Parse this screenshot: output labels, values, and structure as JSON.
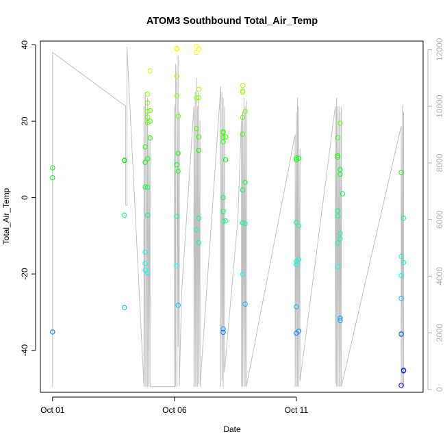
{
  "chart_data": {
    "type": "scatter",
    "title": "ATOM3 Southbound Total_Air_Temp",
    "xlabel": "Date",
    "ylabel": "Total_Air_Temp",
    "x_unit": "days since Oct 01",
    "xlim": [
      -0.5,
      15.2
    ],
    "ylim": [
      -51,
      41
    ],
    "y2lim": [
      -100,
      12300
    ],
    "x_ticks": [
      {
        "x": 0,
        "label": "Oct 01"
      },
      {
        "x": 5,
        "label": "Oct 06"
      },
      {
        "x": 10,
        "label": "Oct 11"
      }
    ],
    "y_ticks": [
      -40,
      -20,
      0,
      20,
      40
    ],
    "y2_ticks": [
      0,
      2000,
      4000,
      6000,
      8000,
      10000,
      12000
    ],
    "temp_range": [
      -50,
      40
    ],
    "color_scale": [
      "#ffff00",
      "#00ff00",
      "#00ffff",
      "#0000ff"
    ],
    "point_series": [
      {
        "x": 0.0,
        "y": [
          7.8,
          5.2,
          -35.2
        ]
      },
      {
        "x": 2.95,
        "y": [
          9.7,
          9.8,
          -4.6,
          -28.8
        ]
      },
      {
        "x": 3.8,
        "y": [
          13.3,
          9.2,
          2.8,
          -14.3,
          -17.3,
          -19.0
        ]
      },
      {
        "x": 3.9,
        "y": [
          27.1,
          24.8,
          22.6,
          21.1,
          19.6,
          10.2,
          2.7,
          -19.7,
          -4.6
        ]
      },
      {
        "x": 4.0,
        "y": [
          33.2,
          22.8,
          20.0,
          15.6
        ]
      },
      {
        "x": 5.1,
        "y": [
          39.1,
          38.9,
          31.8,
          26.7,
          8.6,
          -4.9,
          -17.9
        ]
      },
      {
        "x": 5.15,
        "y": [
          21.3,
          11.6,
          6.9,
          -28.2
        ]
      },
      {
        "x": 5.9,
        "y": [
          39.6,
          38.0,
          26.1,
          18.1,
          -8.4
        ]
      },
      {
        "x": 6.0,
        "y": [
          38.9,
          28.4,
          26.2,
          15.9,
          12.4,
          -5.4,
          -11.8
        ]
      },
      {
        "x": 7.0,
        "y": [
          17.3,
          17.0,
          15.8,
          14.6,
          0.0,
          -3.6,
          -6.2,
          -34.4,
          -35.3
        ]
      },
      {
        "x": 7.1,
        "y": [
          15.9,
          9.9,
          -6.1
        ]
      },
      {
        "x": 7.8,
        "y": [
          29.4,
          27.9,
          27.6,
          21.0,
          16.6,
          2.0,
          -6.6,
          -20.1
        ]
      },
      {
        "x": 7.9,
        "y": [
          22.6,
          4.0,
          -6.8,
          -27.9
        ]
      },
      {
        "x": 10.0,
        "y": [
          10.4,
          9.9,
          -6.5,
          -16.7,
          -17.6,
          -28.6,
          -35.5
        ]
      },
      {
        "x": 10.1,
        "y": [
          10.3,
          -7.4,
          -16.2,
          -35.0
        ]
      },
      {
        "x": 11.7,
        "y": [
          15.7,
          11.0,
          10.6,
          -3.5,
          -4.8,
          -11.9,
          -18.1
        ]
      },
      {
        "x": 11.8,
        "y": [
          19.5,
          7.3,
          6.1,
          -9.4,
          -10.8,
          -31.6,
          -32.2
        ]
      },
      {
        "x": 11.9,
        "y": [
          1.0
        ]
      },
      {
        "x": 14.3,
        "y": [
          6.6,
          -15.4,
          -20.4,
          -26.4,
          -35.7,
          -35.8,
          -49.2
        ]
      },
      {
        "x": 14.4,
        "y": [
          -5.4,
          -17.0,
          -45.2,
          -45.4
        ]
      }
    ],
    "altitude_secondary_axis": {
      "x": [
        0.0,
        0.0,
        3.0,
        3.0,
        3.05,
        3.05,
        3.75,
        3.75,
        3.8,
        3.8,
        3.85,
        3.85,
        3.9,
        3.9,
        3.95,
        3.95,
        4.0,
        4.0,
        5.0,
        5.0,
        5.05,
        5.05,
        5.1,
        5.1,
        5.15,
        5.15,
        5.2,
        5.2,
        5.3,
        5.8,
        5.8,
        5.85,
        5.85,
        5.9,
        5.9,
        5.95,
        5.95,
        6.0,
        6.0,
        6.05,
        6.05,
        6.9,
        6.9,
        6.95,
        6.95,
        7.0,
        7.0,
        7.05,
        7.05,
        7.6,
        7.75,
        7.75,
        7.8,
        7.8,
        7.85,
        7.85,
        7.9,
        7.9,
        7.95,
        7.95,
        9.95,
        9.95,
        10.0,
        10.0,
        10.05,
        10.05,
        10.1,
        10.1,
        10.15,
        10.15,
        11.6,
        11.6,
        11.65,
        11.65,
        11.7,
        11.7,
        11.75,
        11.75,
        11.8,
        11.8,
        11.85,
        11.85,
        14.3,
        14.3,
        14.35,
        14.35,
        14.4,
        14.4
      ],
      "y": [
        100,
        11900,
        10000,
        6500,
        6500,
        12100,
        100,
        10000,
        100,
        10500,
        9000,
        100,
        10300,
        100,
        9000,
        100,
        9000,
        100,
        100,
        10000,
        100,
        11500,
        10000,
        100,
        11800,
        1500,
        9800,
        100,
        3500,
        10000,
        100,
        10500,
        100,
        11000,
        100,
        10000,
        100,
        10500,
        200,
        9500,
        100,
        10700,
        100,
        10500,
        300,
        10300,
        100,
        10000,
        600,
        6000,
        9500,
        100,
        9800,
        100,
        10300,
        100,
        10000,
        100,
        10200,
        100,
        9000,
        100,
        9800,
        100,
        10300,
        100,
        10000,
        100,
        8500,
        300,
        10000,
        200,
        10300,
        100,
        10000,
        100,
        10000,
        100,
        9800,
        100,
        10000,
        100,
        9300,
        100,
        10000,
        100,
        9800,
        100
      ]
    }
  }
}
